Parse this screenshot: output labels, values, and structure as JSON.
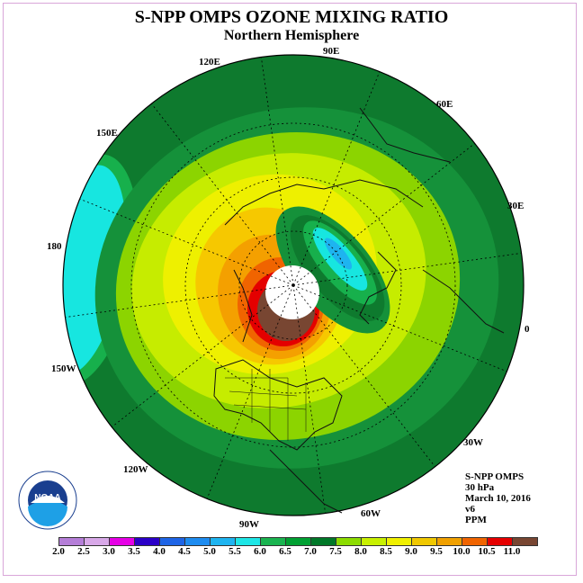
{
  "title": "S-NPP OMPS OZONE MIXING RATIO",
  "subtitle": "Northern Hemisphere",
  "longitude_labels": {
    "e90": "90E",
    "e60": "60E",
    "e30": "30E",
    "zero": "0",
    "w30": "30W",
    "w60": "60W",
    "w90": "90W",
    "w120": "120W",
    "w150": "150W",
    "lon180": "180",
    "e150": "150E",
    "e120": "120E"
  },
  "info": {
    "instrument": "S-NPP OMPS",
    "level": "30 hPa",
    "date": "March 10, 2016",
    "version": "v6",
    "units": "PPM"
  },
  "logo": {
    "name": "noaa-logo",
    "text": "NOAA"
  },
  "colorbar": {
    "labels": [
      "2.0",
      "2.5",
      "3.0",
      "3.5",
      "4.0",
      "4.5",
      "5.0",
      "5.5",
      "6.0",
      "6.5",
      "7.0",
      "7.5",
      "8.0",
      "8.5",
      "9.0",
      "9.5",
      "10.0",
      "10.5",
      "11.0"
    ],
    "colors": [
      "#b57ed8",
      "#d8a8e8",
      "#e600e6",
      "#2b00c8",
      "#1e64e6",
      "#1e8cf0",
      "#1eb4f0",
      "#1ee6e6",
      "#1ab450",
      "#00a032",
      "#007828",
      "#8cdc00",
      "#c8f000",
      "#f0f000",
      "#f0c800",
      "#f0a000",
      "#f06400",
      "#e60000",
      "#784632"
    ]
  },
  "map_colors": {
    "ocean_bg": "#0e7a2e",
    "band_65": "#15913a",
    "band_7": "#8cd400",
    "band_75": "#c6ec00",
    "band_8": "#eef000",
    "band_85": "#f6c800",
    "band_9": "#f4a000",
    "band_95": "#f06400",
    "band_10": "#e40000",
    "band_11": "#784632",
    "low_6": "#17b04c",
    "low_55": "#17e6e0",
    "low_5": "#1eb4f0",
    "pole": "#ffffff"
  }
}
